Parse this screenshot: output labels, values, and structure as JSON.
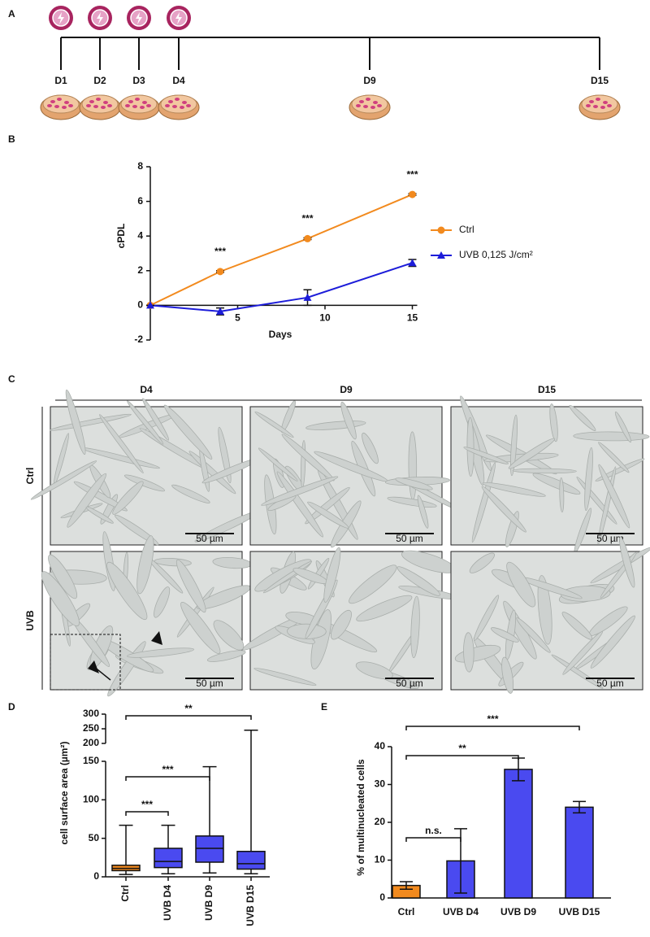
{
  "panel_labels": [
    "A",
    "B",
    "C",
    "D",
    "E"
  ],
  "timeline": {
    "days": [
      "D1",
      "D2",
      "D3",
      "D4",
      "D9",
      "D15"
    ]
  },
  "micrographs": {
    "columns": [
      "D4",
      "D9",
      "D15"
    ],
    "rows": [
      "Ctrl",
      "UVB"
    ],
    "scale_bar": "50 µm"
  },
  "chart_data": [
    {
      "type": "line",
      "x_label": "Days",
      "y_label": "cPDL",
      "xlim": [
        0,
        15
      ],
      "xticks": [
        5,
        10,
        15
      ],
      "ylim": [
        -2,
        8
      ],
      "yticks": [
        -2,
        0,
        2,
        4,
        6,
        8
      ],
      "series": [
        {
          "name": "Ctrl",
          "color": "#f28a1e",
          "marker": "circle",
          "x": [
            0,
            4,
            9,
            15
          ],
          "values": [
            0,
            1.95,
            3.85,
            6.4
          ],
          "errors": [
            0,
            0.05,
            0.05,
            0.05
          ]
        },
        {
          "name": "UVB 0,125 J/cm²",
          "color": "#1c1cd9",
          "marker": "triangle",
          "x": [
            0,
            4,
            9,
            15
          ],
          "values": [
            0,
            -0.35,
            0.45,
            2.45
          ],
          "errors": [
            0,
            0.2,
            0.45,
            0.2
          ]
        }
      ],
      "annotations": [
        {
          "text": "***",
          "x": 4
        },
        {
          "text": "***",
          "x": 9
        },
        {
          "text": "***",
          "x": 15
        }
      ]
    },
    {
      "type": "box",
      "y_label": "cell surface area (µm²)",
      "categories": [
        "Ctrl",
        "UVB D4",
        "UVB D9",
        "UVB D15"
      ],
      "colors": [
        "#f28a1e",
        "#4a4af0",
        "#4a4af0",
        "#4a4af0"
      ],
      "min": [
        3,
        4,
        5,
        4
      ],
      "q1": [
        8,
        12,
        19,
        10
      ],
      "median": [
        11,
        20,
        37,
        17
      ],
      "q3": [
        15,
        37,
        53,
        33
      ],
      "max": [
        67,
        67,
        143,
        245
      ],
      "ylim": [
        0,
        150
      ],
      "yticks": [
        0,
        50,
        100,
        150
      ],
      "upper_ylim": [
        200,
        300
      ],
      "upper_yticks": [
        200,
        250,
        300
      ],
      "brackets": [
        {
          "text": "***",
          "between": [
            "Ctrl",
            "UVB D4"
          ]
        },
        {
          "text": "***",
          "between": [
            "Ctrl",
            "UVB D9"
          ]
        },
        {
          "text": "**",
          "between": [
            "Ctrl",
            "UVB D15"
          ]
        }
      ]
    },
    {
      "type": "bar",
      "y_label": "% of multinucleated cells",
      "categories": [
        "Ctrl",
        "UVB D4",
        "UVB D9",
        "UVB D15"
      ],
      "colors": [
        "#f28a1e",
        "#4a4af0",
        "#4a4af0",
        "#4a4af0"
      ],
      "values": [
        3.3,
        9.8,
        34,
        24
      ],
      "errors": [
        1,
        8.5,
        3,
        1.5
      ],
      "ylim": [
        0,
        40
      ],
      "yticks": [
        0,
        10,
        20,
        30,
        40
      ],
      "brackets": [
        {
          "text": "n.s.",
          "between": [
            "Ctrl",
            "UVB D4"
          ]
        },
        {
          "text": "**",
          "between": [
            "Ctrl",
            "UVB D9"
          ]
        },
        {
          "text": "***",
          "between": [
            "Ctrl",
            "UVB D15"
          ]
        }
      ]
    }
  ]
}
